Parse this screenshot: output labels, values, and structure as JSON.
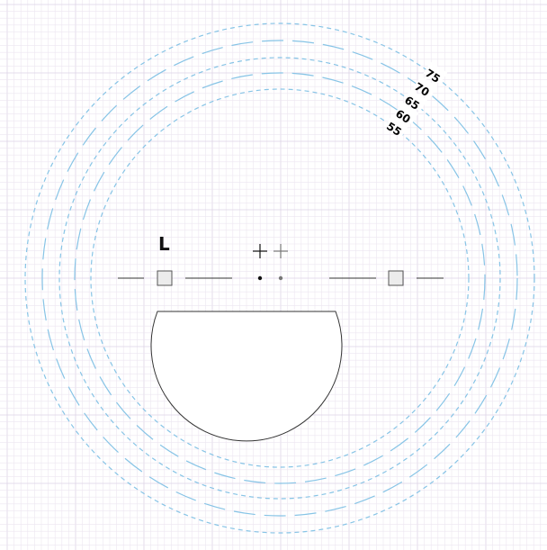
{
  "diagram": {
    "side_label": "L",
    "rings": [
      {
        "label": "55",
        "style": "dashed"
      },
      {
        "label": "60",
        "style": "long-dash"
      },
      {
        "label": "65",
        "style": "dashed"
      },
      {
        "label": "70",
        "style": "long-dash"
      },
      {
        "label": "75",
        "style": "dashed"
      }
    ],
    "colors": {
      "ring": "#87c4e6",
      "grid": "#ece6f0",
      "line": "#333333"
    },
    "icons": [
      "crosshair-icon",
      "crosshair-icon"
    ]
  }
}
